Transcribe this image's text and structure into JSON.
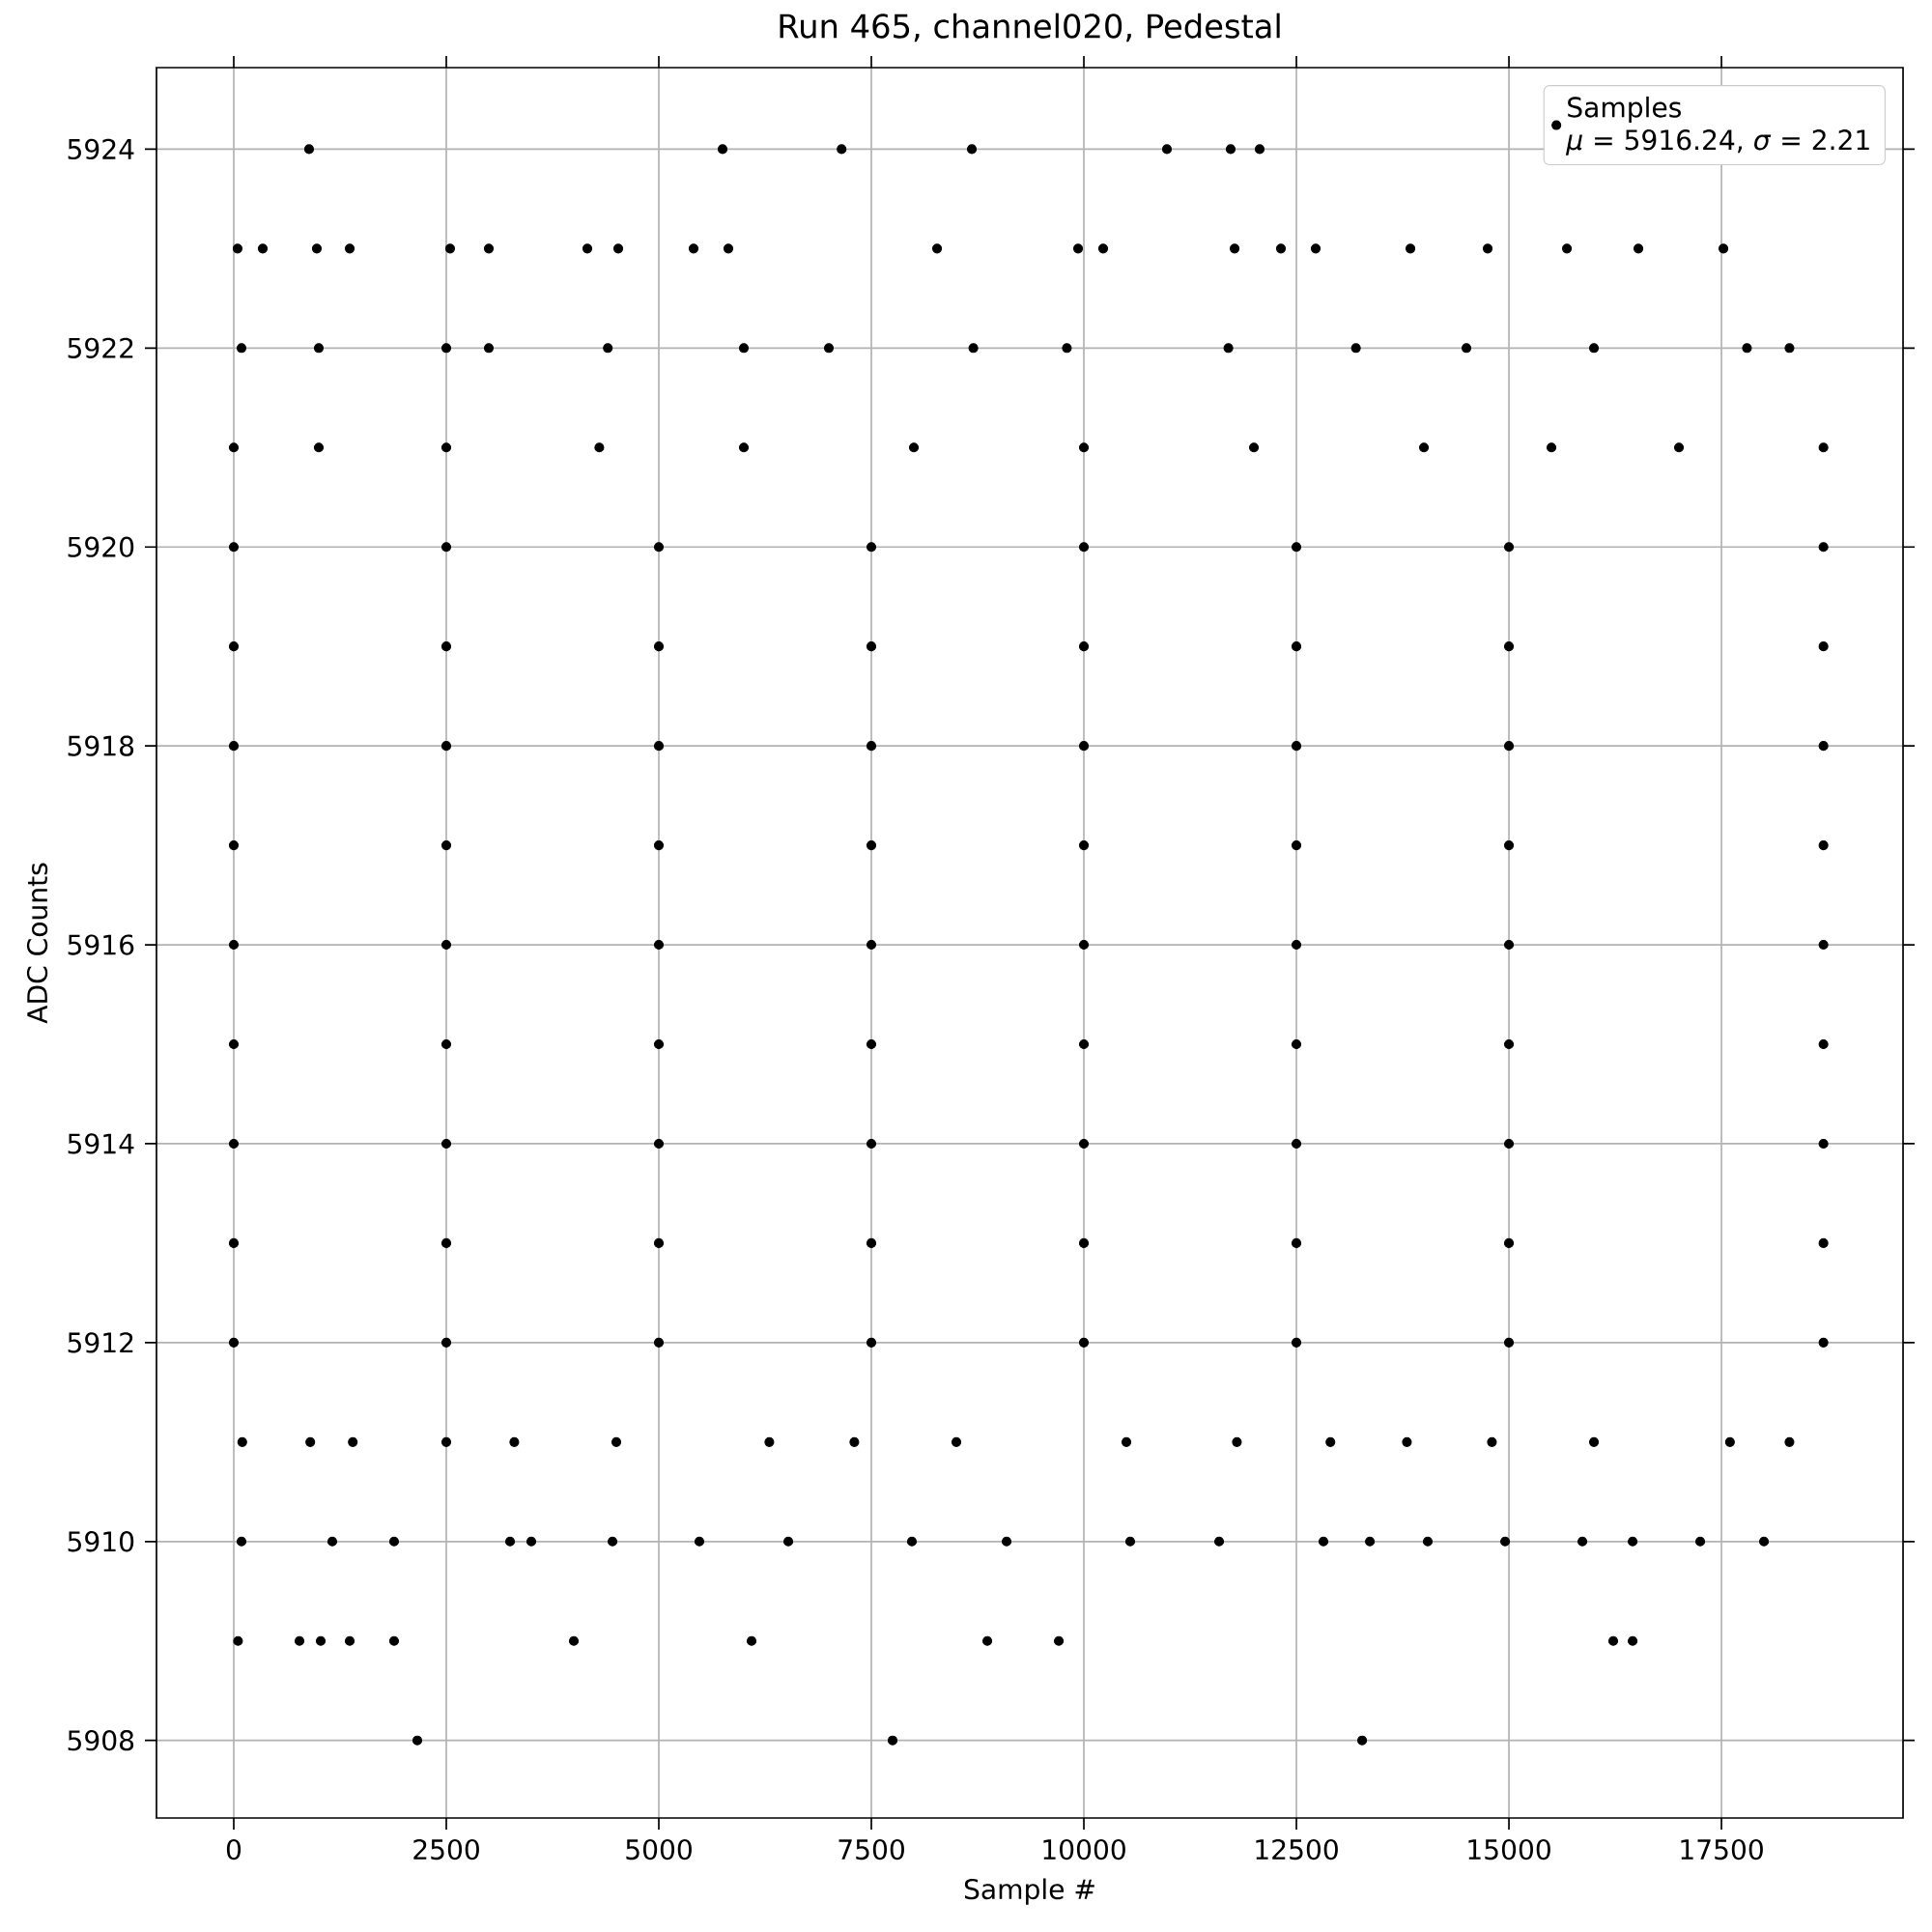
{
  "chart_data": {
    "type": "scatter",
    "title": "Run 465, channel020, Pedestal",
    "xlabel": "Sample #",
    "ylabel": "ADC Counts",
    "annotations": [
      "*μ* = 5916.24, *σ* = 2.21"
    ],
    "series": [
      {
        "name": "Samples",
        "color": "#000000",
        "x": [
          2159,
          7750,
          13273,
          50,
          773,
          1023,
          1364,
          1886,
          4000,
          6091,
          8864,
          9705,
          16227,
          16455,
          91,
          1159,
          1886,
          3250,
          3500,
          4455,
          5477,
          6523,
          7977,
          9091,
          10545,
          11591,
          12818,
          13364,
          14045,
          14955,
          15864,
          16455,
          17250,
          18000,
          100,
          900,
          1400,
          2500,
          3300,
          4500,
          6300,
          7300,
          8500,
          10500,
          11800,
          12900,
          13800,
          14800,
          16000,
          17600,
          18300,
          0,
          2500,
          5000,
          7500,
          10000,
          12500,
          15000,
          18700,
          0,
          2500,
          5000,
          7500,
          10000,
          12500,
          15000,
          18700,
          0,
          2500,
          5000,
          7500,
          10000,
          12500,
          15000,
          18700,
          0,
          2500,
          5000,
          7500,
          10000,
          12500,
          15000,
          18700,
          0,
          2500,
          5000,
          7500,
          10000,
          12500,
          15000,
          18700,
          0,
          2500,
          5000,
          7500,
          10000,
          12500,
          15000,
          18700,
          0,
          2500,
          5000,
          7500,
          10000,
          12500,
          15000,
          18700,
          0,
          2500,
          5000,
          7500,
          10000,
          12500,
          15000,
          18700,
          0,
          2500,
          5000,
          7500,
          10000,
          12500,
          15000,
          18700,
          0,
          1000,
          2500,
          4300,
          6000,
          8000,
          10000,
          12000,
          14000,
          15500,
          17000,
          18700,
          91,
          1000,
          2500,
          3000,
          4400,
          6000,
          7000,
          8700,
          9800,
          11700,
          13200,
          14500,
          16000,
          17800,
          18300,
          45,
          341,
          977,
          1364,
          2545,
          3000,
          4159,
          4523,
          5409,
          5818,
          8273,
          9932,
          10227,
          11773,
          12318,
          12727,
          13841,
          14750,
          15682,
          16523,
          17523,
          886,
          5750,
          7150,
          8682,
          10977,
          11727,
          12068
        ],
        "values": [
          5908,
          5908,
          5908,
          5909,
          5909,
          5909,
          5909,
          5909,
          5909,
          5909,
          5909,
          5909,
          5909,
          5909,
          5910,
          5910,
          5910,
          5910,
          5910,
          5910,
          5910,
          5910,
          5910,
          5910,
          5910,
          5910,
          5910,
          5910,
          5910,
          5910,
          5910,
          5910,
          5910,
          5910,
          5911,
          5911,
          5911,
          5911,
          5911,
          5911,
          5911,
          5911,
          5911,
          5911,
          5911,
          5911,
          5911,
          5911,
          5911,
          5911,
          5911,
          5912,
          5912,
          5912,
          5912,
          5912,
          5912,
          5912,
          5912,
          5913,
          5913,
          5913,
          5913,
          5913,
          5913,
          5913,
          5913,
          5914,
          5914,
          5914,
          5914,
          5914,
          5914,
          5914,
          5914,
          5915,
          5915,
          5915,
          5915,
          5915,
          5915,
          5915,
          5915,
          5916,
          5916,
          5916,
          5916,
          5916,
          5916,
          5916,
          5916,
          5917,
          5917,
          5917,
          5917,
          5917,
          5917,
          5917,
          5917,
          5918,
          5918,
          5918,
          5918,
          5918,
          5918,
          5918,
          5918,
          5919,
          5919,
          5919,
          5919,
          5919,
          5919,
          5919,
          5919,
          5920,
          5920,
          5920,
          5920,
          5920,
          5920,
          5920,
          5920,
          5921,
          5921,
          5921,
          5921,
          5921,
          5921,
          5921,
          5921,
          5921,
          5921,
          5921,
          5921,
          5922,
          5922,
          5922,
          5922,
          5922,
          5922,
          5922,
          5922,
          5922,
          5922,
          5922,
          5922,
          5922,
          5922,
          5922,
          5923,
          5923,
          5923,
          5923,
          5923,
          5923,
          5923,
          5923,
          5923,
          5923,
          5923,
          5923,
          5923,
          5923,
          5923,
          5923,
          5923,
          5923,
          5923,
          5923,
          5923,
          5924,
          5924,
          5924,
          5924,
          5924,
          5924,
          5924
        ]
      }
    ],
    "xlim": [
      -909,
      19636
    ],
    "ylim": [
      5907.22,
      5924.82
    ],
    "xticks": [
      0,
      2500,
      5000,
      7500,
      10000,
      12500,
      15000,
      17500
    ],
    "yticks": [
      5908,
      5910,
      5912,
      5914,
      5916,
      5918,
      5920,
      5922,
      5924
    ],
    "grid": true,
    "legend": "top right",
    "marker": "circle"
  }
}
